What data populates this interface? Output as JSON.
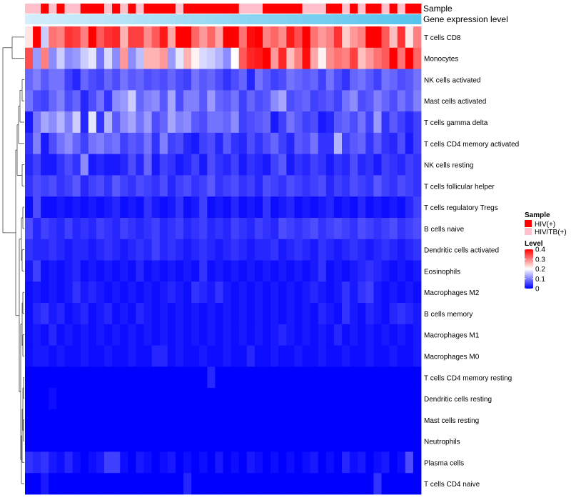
{
  "chart_data": {
    "type": "heatmap",
    "title": "",
    "annotation_rows": [
      "Sample",
      "Gene expression level"
    ],
    "rows": [
      "T cells CD8",
      "Monocytes",
      "NK cells activated",
      "Mast cells activated",
      "T cells gamma delta",
      "T cells CD4 memory activated",
      "NK cells resting",
      "T cells follicular helper",
      "T cells regulatory  Tregs",
      "B cells naive",
      "Dendritic cells activated",
      "Eosinophils",
      "Macrophages M2",
      "B cells memory",
      "Macrophages M1",
      "Macrophages M0",
      "T cells CD4 memory resting",
      "Dendritic cells resting",
      "Mast cells resting",
      "Neutrophils",
      "Plasma cells",
      "T cells CD4 naive"
    ],
    "sample_annotation": [
      "HIV/TB(+)",
      "HIV/TB(+)",
      "HIV(+)",
      "HIV/TB(+)",
      "HIV(+)",
      "HIV/TB(+)",
      "HIV/TB(+)",
      "HIV(+)",
      "HIV(+)",
      "HIV(+)",
      "HIV/TB(+)",
      "HIV(+)",
      "HIV/TB(+)",
      "HIV(+)",
      "HIV/TB(+)",
      "HIV(+)",
      "HIV(+)",
      "HIV(+)",
      "HIV(+)",
      "HIV/TB(+)",
      "HIV(+)",
      "HIV(+)",
      "HIV(+)",
      "HIV(+)",
      "HIV(+)",
      "HIV(+)",
      "HIV(+)",
      "HIV/TB(+)",
      "HIV/TB(+)",
      "HIV/TB(+)",
      "HIV(+)",
      "HIV(+)",
      "HIV(+)",
      "HIV(+)",
      "HIV(+)",
      "HIV/TB(+)",
      "HIV/TB(+)",
      "HIV/TB(+)",
      "HIV(+)",
      "HIV(+)",
      "HIV/TB(+)",
      "HIV(+)",
      "HIV/TB(+)",
      "HIV(+)",
      "HIV(+)",
      "HIV/TB(+)",
      "HIV(+)",
      "HIV/TB(+)",
      "HIV(+)",
      "HIV(+)"
    ],
    "expression_level_gradient": [
      "#d4eefb",
      "#56c3ec"
    ],
    "legend_sample": {
      "title": "Sample",
      "entries": [
        {
          "label": "HIV(+)",
          "color": "#ff0000"
        },
        {
          "label": "HIV/TB(+)",
          "color": "#ffc0cb"
        }
      ]
    },
    "legend_level": {
      "title": "Level",
      "ticks": [
        "0.4",
        "0.3",
        "0.2",
        "0.1",
        "0"
      ],
      "range": [
        0,
        0.4
      ]
    },
    "colorscale": [
      "#0000ff",
      "#ffffff",
      "#ff0000"
    ],
    "matrix": [
      [
        0.22,
        0.4,
        0.16,
        0.31,
        0.3,
        0.36,
        0.35,
        0.3,
        0.4,
        0.33,
        0.36,
        0.37,
        0.26,
        0.35,
        0.35,
        0.29,
        0.33,
        0.38,
        0.27,
        0.4,
        0.4,
        0.32,
        0.28,
        0.32,
        0.27,
        0.4,
        0.4,
        0.31,
        0.39,
        0.4,
        0.3,
        0.32,
        0.29,
        0.38,
        0.34,
        0.4,
        0.31,
        0.28,
        0.3,
        0.36,
        0.24,
        0.28,
        0.3,
        0.4,
        0.4,
        0.33,
        0.25,
        0.36,
        0.22,
        0.3
      ],
      [
        0.34,
        0.12,
        0.3,
        0.11,
        0.16,
        0.11,
        0.12,
        0.16,
        0.18,
        0.09,
        0.17,
        0.11,
        0.28,
        0.11,
        0.15,
        0.26,
        0.26,
        0.28,
        0.12,
        0.18,
        0.26,
        0.21,
        0.17,
        0.16,
        0.14,
        0.11,
        0.2,
        0.33,
        0.37,
        0.38,
        0.4,
        0.28,
        0.37,
        0.25,
        0.3,
        0.39,
        0.27,
        0.21,
        0.29,
        0.31,
        0.3,
        0.35,
        0.25,
        0.28,
        0.31,
        0.33,
        0.4,
        0.31,
        0.4,
        0.32
      ],
      [
        0.08,
        0.1,
        0.07,
        0.09,
        0.09,
        0.05,
        0.03,
        0.08,
        0.06,
        0.05,
        0.08,
        0.06,
        0.09,
        0.07,
        0.08,
        0.06,
        0.07,
        0.06,
        0.08,
        0.06,
        0.05,
        0.09,
        0.07,
        0.08,
        0.06,
        0.04,
        0.06,
        0.08,
        0.03,
        0.09,
        0.07,
        0.05,
        0.06,
        0.09,
        0.08,
        0.07,
        0.08,
        0.05,
        0.09,
        0.06,
        0.04,
        0.08,
        0.09,
        0.07,
        0.05,
        0.09,
        0.08,
        0.06,
        0.07,
        0.09
      ],
      [
        0.09,
        0.06,
        0.05,
        0.08,
        0.1,
        0.06,
        0.08,
        0.03,
        0.06,
        0.09,
        0.04,
        0.11,
        0.12,
        0.16,
        0.08,
        0.1,
        0.11,
        0.07,
        0.13,
        0.06,
        0.1,
        0.1,
        0.07,
        0.12,
        0.08,
        0.07,
        0.09,
        0.05,
        0.08,
        0.06,
        0.07,
        0.11,
        0.13,
        0.06,
        0.07,
        0.08,
        0.05,
        0.06,
        0.07,
        0.05,
        0.09,
        0.11,
        0.06,
        0.07,
        0.1,
        0.08,
        0.06,
        0.09,
        0.07,
        0.1
      ],
      [
        0.02,
        0.09,
        0.13,
        0.11,
        0.14,
        0.1,
        0.16,
        0.03,
        0.18,
        0.04,
        0.14,
        0.07,
        0.11,
        0.13,
        0.09,
        0.12,
        0.06,
        0.08,
        0.13,
        0.1,
        0.11,
        0.07,
        0.06,
        0.09,
        0.09,
        0.08,
        0.11,
        0.05,
        0.06,
        0.07,
        0.08,
        0.02,
        0.05,
        0.09,
        0.07,
        0.05,
        0.06,
        0.02,
        0.03,
        0.07,
        0.08,
        0.06,
        0.09,
        0.05,
        0.12,
        0.04,
        0.07,
        0.05,
        0.03,
        0.05
      ],
      [
        0.04,
        0.1,
        0.02,
        0.06,
        0.09,
        0.11,
        0.08,
        0.05,
        0.09,
        0.1,
        0.08,
        0.09,
        0.05,
        0.07,
        0.06,
        0.09,
        0.04,
        0.1,
        0.05,
        0.06,
        0.03,
        0.02,
        0.05,
        0.06,
        0.03,
        0.07,
        0.04,
        0.03,
        0.06,
        0.04,
        0.06,
        0.08,
        0.05,
        0.03,
        0.07,
        0.06,
        0.09,
        0.04,
        0.04,
        0.14,
        0.05,
        0.07,
        0.08,
        0.04,
        0.07,
        0.04,
        0.03,
        0.06,
        0.02,
        0.05
      ],
      [
        0.03,
        0.05,
        0.02,
        0.02,
        0.04,
        0.06,
        0.04,
        0.11,
        0.02,
        0.03,
        0.02,
        0.02,
        0.03,
        0.06,
        0.03,
        0.08,
        0.02,
        0.05,
        0.04,
        0.02,
        0.03,
        0.05,
        0.02,
        0.06,
        0.04,
        0.03,
        0.05,
        0.02,
        0.04,
        0.03,
        0.02,
        0.05,
        0.07,
        0.02,
        0.04,
        0.03,
        0.05,
        0.04,
        0.02,
        0.04,
        0.03,
        0.06,
        0.03,
        0.04,
        0.02,
        0.05,
        0.04,
        0.03,
        0.05,
        0.04
      ],
      [
        0.04,
        0.06,
        0.05,
        0.06,
        0.04,
        0.05,
        0.07,
        0.03,
        0.05,
        0.06,
        0.04,
        0.07,
        0.05,
        0.04,
        0.06,
        0.05,
        0.04,
        0.06,
        0.03,
        0.05,
        0.06,
        0.04,
        0.05,
        0.07,
        0.04,
        0.05,
        0.06,
        0.04,
        0.05,
        0.03,
        0.06,
        0.05,
        0.04,
        0.06,
        0.05,
        0.04,
        0.05,
        0.06,
        0.03,
        0.05,
        0.04,
        0.06,
        0.05,
        0.04,
        0.07,
        0.05,
        0.04,
        0.06,
        0.05,
        0.04
      ],
      [
        0.01,
        0.06,
        0.01,
        0.01,
        0.02,
        0.01,
        0.02,
        0.01,
        0.02,
        0.01,
        0.02,
        0.03,
        0.01,
        0.02,
        0.01,
        0.04,
        0.02,
        0.01,
        0.02,
        0.04,
        0.01,
        0.02,
        0.05,
        0.01,
        0.02,
        0.01,
        0.03,
        0.01,
        0.02,
        0.01,
        0.04,
        0.01,
        0.02,
        0.03,
        0.01,
        0.02,
        0.01,
        0.02,
        0.03,
        0.01,
        0.02,
        0.01,
        0.03,
        0.01,
        0.02,
        0.01,
        0.02,
        0.01,
        0.03,
        0.05
      ],
      [
        0.06,
        0.03,
        0.05,
        0.04,
        0.03,
        0.05,
        0.03,
        0.04,
        0.03,
        0.05,
        0.04,
        0.03,
        0.05,
        0.04,
        0.03,
        0.04,
        0.05,
        0.03,
        0.04,
        0.05,
        0.03,
        0.04,
        0.05,
        0.03,
        0.04,
        0.03,
        0.05,
        0.04,
        0.03,
        0.05,
        0.04,
        0.03,
        0.06,
        0.05,
        0.04,
        0.05,
        0.06,
        0.04,
        0.05,
        0.06,
        0.05,
        0.04,
        0.06,
        0.05,
        0.04,
        0.05,
        0.06,
        0.04,
        0.05,
        0.06
      ],
      [
        0.04,
        0.03,
        0.03,
        0.04,
        0.03,
        0.02,
        0.03,
        0.03,
        0.02,
        0.03,
        0.04,
        0.03,
        0.02,
        0.03,
        0.04,
        0.03,
        0.05,
        0.03,
        0.04,
        0.03,
        0.02,
        0.03,
        0.04,
        0.03,
        0.02,
        0.03,
        0.04,
        0.03,
        0.02,
        0.03,
        0.03,
        0.04,
        0.02,
        0.03,
        0.04,
        0.03,
        0.02,
        0.04,
        0.03,
        0.02,
        0.03,
        0.04,
        0.03,
        0.02,
        0.03,
        0.04,
        0.03,
        0.02,
        0.03,
        0.04
      ],
      [
        0.02,
        0.05,
        0.01,
        0.02,
        0.01,
        0.02,
        0.03,
        0.01,
        0.02,
        0.01,
        0.02,
        0.01,
        0.02,
        0.01,
        0.03,
        0.01,
        0.02,
        0.01,
        0.02,
        0.01,
        0.02,
        0.01,
        0.04,
        0.01,
        0.02,
        0.01,
        0.02,
        0.01,
        0.02,
        0.01,
        0.02,
        0.01,
        0.02,
        0.01,
        0.02,
        0.01,
        0.02,
        0.04,
        0.01,
        0.02,
        0.01,
        0.02,
        0.03,
        0.04,
        0.03,
        0.02,
        0.01,
        0.02,
        0.01,
        0.02
      ],
      [
        0.01,
        0.02,
        0.01,
        0.02,
        0.01,
        0.02,
        0.04,
        0.02,
        0.03,
        0.02,
        0.01,
        0.02,
        0.01,
        0.02,
        0.01,
        0.02,
        0.01,
        0.02,
        0.03,
        0.02,
        0.01,
        0.04,
        0.03,
        0.02,
        0.04,
        0.02,
        0.01,
        0.02,
        0.01,
        0.02,
        0.01,
        0.02,
        0.01,
        0.02,
        0.01,
        0.02,
        0.03,
        0.02,
        0.01,
        0.02,
        0.04,
        0.02,
        0.04,
        0.05,
        0.02,
        0.01,
        0.02,
        0.01,
        0.02,
        0.01
      ],
      [
        0.01,
        0.03,
        0.04,
        0.02,
        0.03,
        0.01,
        0.02,
        0.03,
        0.01,
        0.02,
        0.03,
        0.01,
        0.02,
        0.01,
        0.03,
        0.02,
        0.01,
        0.02,
        0.01,
        0.02,
        0.01,
        0.02,
        0.01,
        0.02,
        0.01,
        0.02,
        0.01,
        0.02,
        0.01,
        0.02,
        0.01,
        0.02,
        0.01,
        0.02,
        0.01,
        0.02,
        0.01,
        0.03,
        0.02,
        0.01,
        0.04,
        0.02,
        0.01,
        0.03,
        0.02,
        0.01,
        0.03,
        0.04,
        0.03,
        0.02
      ],
      [
        0.01,
        0.02,
        0.01,
        0.03,
        0.01,
        0.02,
        0.01,
        0.02,
        0.01,
        0.02,
        0.01,
        0.02,
        0.01,
        0.02,
        0.01,
        0.02,
        0.01,
        0.02,
        0.01,
        0.02,
        0.01,
        0.02,
        0.01,
        0.02,
        0.01,
        0.02,
        0.01,
        0.02,
        0.01,
        0.02,
        0.01,
        0.02,
        0.03,
        0.02,
        0.01,
        0.02,
        0.01,
        0.02,
        0.01,
        0.03,
        0.01,
        0.02,
        0.01,
        0.02,
        0.01,
        0.02,
        0.01,
        0.02,
        0.01,
        0.02
      ],
      [
        0.01,
        0.02,
        0.02,
        0.01,
        0.02,
        0.01,
        0.01,
        0.02,
        0.01,
        0.01,
        0.02,
        0.01,
        0.01,
        0.02,
        0.01,
        0.01,
        0.03,
        0.03,
        0.01,
        0.02,
        0.01,
        0.01,
        0.02,
        0.01,
        0.01,
        0.02,
        0.01,
        0.01,
        0.03,
        0.01,
        0.01,
        0.02,
        0.01,
        0.01,
        0.02,
        0.01,
        0.01,
        0.02,
        0.01,
        0.01,
        0.02,
        0.01,
        0.01,
        0.02,
        0.01,
        0.01,
        0.02,
        0.01,
        0.01,
        0.02
      ],
      [
        0.0,
        0.0,
        0.0,
        0.0,
        0.0,
        0.0,
        0.0,
        0.0,
        0.0,
        0.0,
        0.0,
        0.0,
        0.0,
        0.0,
        0.0,
        0.0,
        0.0,
        0.0,
        0.0,
        0.0,
        0.0,
        0.0,
        0.0,
        0.03,
        0.0,
        0.0,
        0.0,
        0.0,
        0.0,
        0.0,
        0.0,
        0.0,
        0.0,
        0.0,
        0.0,
        0.0,
        0.0,
        0.0,
        0.0,
        0.0,
        0.0,
        0.0,
        0.0,
        0.0,
        0.0,
        0.0,
        0.0,
        0.0,
        0.0,
        0.0
      ],
      [
        0.0,
        0.0,
        0.0,
        0.01,
        0.0,
        0.0,
        0.0,
        0.0,
        0.0,
        0.0,
        0.0,
        0.0,
        0.0,
        0.0,
        0.0,
        0.0,
        0.0,
        0.0,
        0.0,
        0.0,
        0.0,
        0.0,
        0.0,
        0.0,
        0.0,
        0.0,
        0.0,
        0.0,
        0.0,
        0.0,
        0.0,
        0.0,
        0.0,
        0.0,
        0.0,
        0.0,
        0.0,
        0.0,
        0.0,
        0.0,
        0.0,
        0.0,
        0.0,
        0.0,
        0.0,
        0.0,
        0.0,
        0.0,
        0.0,
        0.0
      ],
      [
        0.0,
        0.0,
        0.0,
        0.0,
        0.0,
        0.0,
        0.0,
        0.0,
        0.0,
        0.0,
        0.0,
        0.0,
        0.0,
        0.0,
        0.0,
        0.0,
        0.0,
        0.0,
        0.0,
        0.0,
        0.0,
        0.0,
        0.0,
        0.0,
        0.0,
        0.0,
        0.0,
        0.0,
        0.0,
        0.0,
        0.0,
        0.0,
        0.0,
        0.0,
        0.0,
        0.0,
        0.0,
        0.0,
        0.0,
        0.0,
        0.0,
        0.0,
        0.0,
        0.0,
        0.0,
        0.0,
        0.0,
        0.0,
        0.0,
        0.0
      ],
      [
        0.0,
        0.0,
        0.0,
        0.0,
        0.0,
        0.0,
        0.0,
        0.0,
        0.0,
        0.0,
        0.0,
        0.0,
        0.0,
        0.0,
        0.0,
        0.0,
        0.0,
        0.0,
        0.0,
        0.0,
        0.0,
        0.0,
        0.0,
        0.0,
        0.0,
        0.0,
        0.0,
        0.0,
        0.0,
        0.0,
        0.0,
        0.0,
        0.0,
        0.0,
        0.0,
        0.0,
        0.0,
        0.0,
        0.0,
        0.0,
        0.0,
        0.0,
        0.0,
        0.0,
        0.0,
        0.0,
        0.0,
        0.0,
        0.0,
        0.0
      ],
      [
        0.04,
        0.03,
        0.04,
        0.02,
        0.01,
        0.03,
        0.01,
        0.0,
        0.01,
        0.02,
        0.05,
        0.05,
        0.01,
        0.0,
        0.02,
        0.01,
        0.0,
        0.01,
        0.02,
        0.0,
        0.01,
        0.0,
        0.01,
        0.0,
        0.02,
        0.0,
        0.01,
        0.0,
        0.02,
        0.01,
        0.0,
        0.01,
        0.0,
        0.01,
        0.0,
        0.01,
        0.02,
        0.0,
        0.01,
        0.0,
        0.03,
        0.01,
        0.02,
        0.0,
        0.01,
        0.02,
        0.0,
        0.01,
        0.06,
        0.0
      ],
      [
        0.0,
        0.0,
        0.02,
        0.0,
        0.0,
        0.0,
        0.0,
        0.0,
        0.0,
        0.0,
        0.0,
        0.0,
        0.0,
        0.0,
        0.0,
        0.0,
        0.0,
        0.0,
        0.0,
        0.0,
        0.03,
        0.0,
        0.0,
        0.0,
        0.0,
        0.0,
        0.0,
        0.0,
        0.0,
        0.0,
        0.0,
        0.0,
        0.0,
        0.0,
        0.0,
        0.0,
        0.0,
        0.0,
        0.0,
        0.0,
        0.0,
        0.0,
        0.0,
        0.0,
        0.04,
        0.0,
        0.0,
        0.0,
        0.0,
        0.0
      ]
    ]
  }
}
